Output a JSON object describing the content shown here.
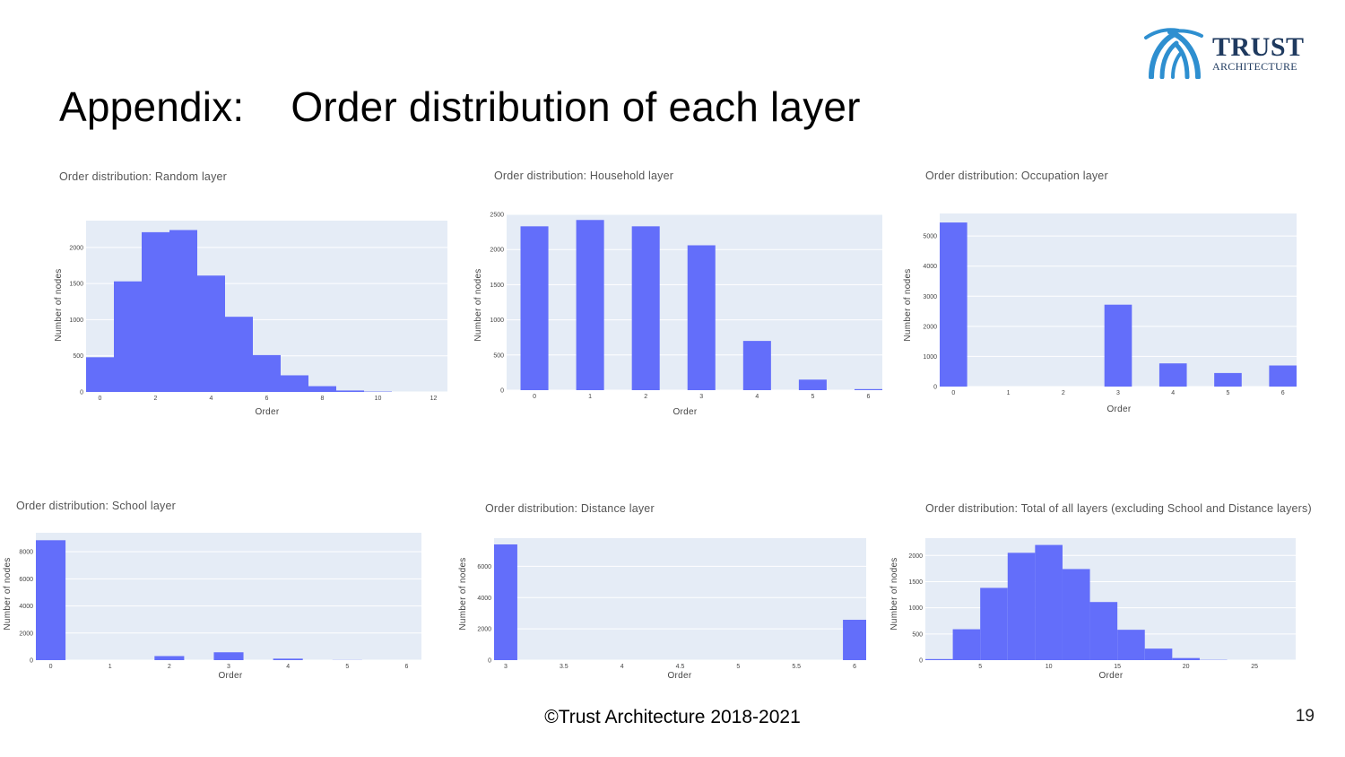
{
  "slide": {
    "title": "Appendix:    Order distribution of each layer",
    "footer": "©Trust Architecture 2018-2021",
    "page_number": "19"
  },
  "logo": {
    "line1": "TRUST",
    "line2": "ARCHITECTURE",
    "color": "#1f3a5f",
    "accent": "#2e8fd0"
  },
  "colors": {
    "bar": "#636efa",
    "plot_bg": "#e5ecf6",
    "grid": "#ffffff"
  },
  "chart_data": [
    {
      "type": "bar",
      "title": "Order distribution: Random layer",
      "xlabel": "Order",
      "ylabel": "Number of nodes",
      "histogram": true,
      "x": [
        0,
        1,
        2,
        3,
        4,
        5,
        6,
        7,
        8,
        9,
        10,
        11
      ],
      "values": [
        480,
        1530,
        2210,
        2240,
        1610,
        1040,
        510,
        230,
        80,
        20,
        5,
        0
      ],
      "xlim": [
        -0.5,
        12.5
      ],
      "ylim": [
        0,
        2370
      ],
      "xticks": [
        0,
        2,
        4,
        6,
        8,
        10,
        12
      ],
      "yticks": [
        0,
        500,
        1000,
        1500,
        2000
      ]
    },
    {
      "type": "bar",
      "title": "Order distribution: Household layer",
      "xlabel": "Order",
      "ylabel": "Number of nodes",
      "x": [
        0,
        1,
        2,
        3,
        4,
        5,
        6
      ],
      "values": [
        2330,
        2420,
        2330,
        2060,
        700,
        150,
        15
      ],
      "xlim": [
        -0.5,
        6.25
      ],
      "ylim": [
        0,
        2500
      ],
      "xticks": [
        0,
        1,
        2,
        3,
        4,
        5,
        6
      ],
      "yticks": [
        0,
        500,
        1000,
        1500,
        2000,
        2500
      ]
    },
    {
      "type": "bar",
      "title": "Order distribution: Occupation layer",
      "xlabel": "Order",
      "ylabel": "Number of nodes",
      "x": [
        0,
        1,
        2,
        3,
        4,
        5,
        6
      ],
      "values": [
        5450,
        0,
        0,
        2720,
        770,
        450,
        700
      ],
      "xlim": [
        -0.25,
        6.25
      ],
      "ylim": [
        0,
        5750
      ],
      "xticks": [
        0,
        1,
        2,
        3,
        4,
        5,
        6
      ],
      "yticks": [
        0,
        1000,
        2000,
        3000,
        4000,
        5000
      ]
    },
    {
      "type": "bar",
      "title": "Order distribution: School layer",
      "xlabel": "Order",
      "ylabel": "Number of nodes",
      "x": [
        0,
        1,
        2,
        3,
        4,
        5,
        6
      ],
      "values": [
        8850,
        0,
        300,
        580,
        110,
        10,
        0
      ],
      "xlim": [
        -0.25,
        6.25
      ],
      "ylim": [
        0,
        9400
      ],
      "xticks": [
        0,
        1,
        2,
        3,
        4,
        5,
        6
      ],
      "yticks": [
        0,
        2000,
        4000,
        6000,
        8000
      ]
    },
    {
      "type": "bar",
      "title": "Order distribution: Distance layer",
      "xlabel": "Order",
      "ylabel": "Number of nodes",
      "x": [
        3,
        6
      ],
      "values": [
        7400,
        2580
      ],
      "bar_width": 0.2,
      "xlim": [
        2.9,
        6.1
      ],
      "ylim": [
        0,
        7800
      ],
      "xticks": [
        3,
        3.5,
        4,
        4.5,
        5,
        5.5,
        6
      ],
      "yticks": [
        0,
        2000,
        4000,
        6000
      ]
    },
    {
      "type": "bar",
      "title": "Order distribution: Total of all layers (excluding School and Distance layers)",
      "xlabel": "Order",
      "ylabel": "Number of nodes",
      "histogram": true,
      "x": [
        2,
        4,
        6,
        8,
        10,
        12,
        14,
        16,
        18,
        20,
        22,
        24
      ],
      "values": [
        20,
        590,
        1380,
        2050,
        2200,
        1740,
        1110,
        580,
        220,
        40,
        5,
        0
      ],
      "bin_width": 2,
      "xlim": [
        1,
        28
      ],
      "ylim": [
        0,
        2330
      ],
      "xticks": [
        5,
        10,
        15,
        20,
        25
      ],
      "yticks": [
        0,
        500,
        1000,
        1500,
        2000
      ]
    }
  ]
}
